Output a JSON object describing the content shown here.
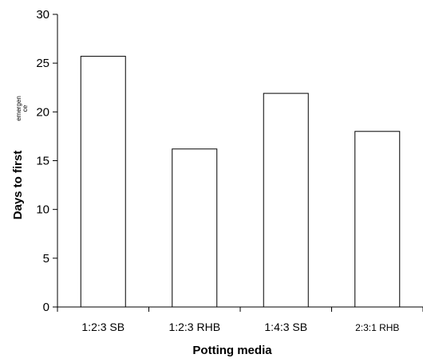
{
  "chart_data": {
    "type": "bar",
    "title": "",
    "xlabel": "Potting media",
    "ylabel": "Days to first",
    "ylabel_extra": [
      "emergen",
      "ce"
    ],
    "categories": [
      "1:2:3 SB",
      "1:2:3 RHB",
      "1:4:3 SB",
      "2:3:1 RHB"
    ],
    "values": [
      25.7,
      16.2,
      21.9,
      18.0
    ],
    "ylim": [
      0,
      30
    ],
    "yticks": [
      0,
      5,
      10,
      15,
      20,
      25,
      30
    ],
    "grid": false,
    "legend": "none",
    "bar_fill": "#ffffff",
    "bar_stroke": "#000000"
  }
}
